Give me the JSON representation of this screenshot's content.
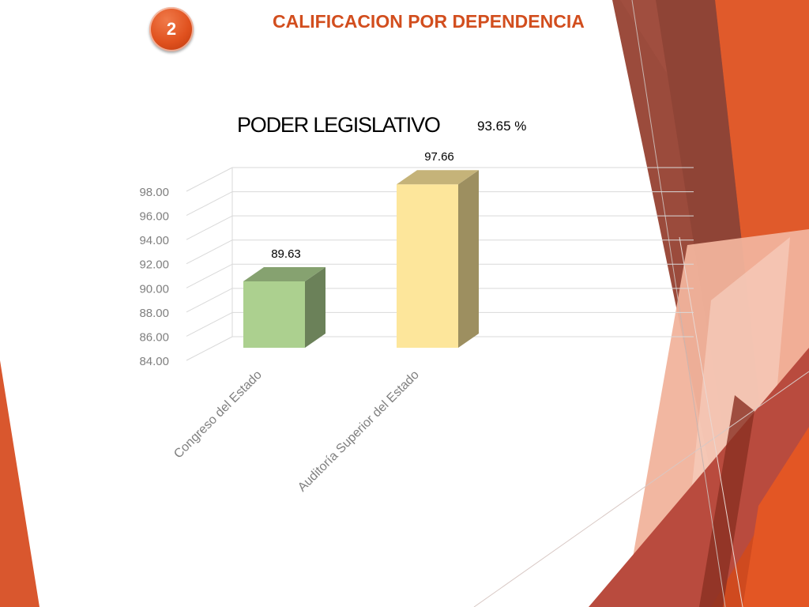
{
  "slide": {
    "badge_number": "2",
    "title": "CALIFICACION POR DEPENDENCIA",
    "accent_color": "#d24e1e"
  },
  "chart_data": {
    "type": "bar",
    "title": "PODER LEGISLATIVO",
    "subtitle": "93.65 %",
    "categories": [
      "Congreso del Estado",
      "Auditoría Superior del Estado"
    ],
    "values": [
      89.63,
      97.66
    ],
    "data_labels": [
      "89.63",
      "97.66"
    ],
    "bar_colors": [
      "#acd08f",
      "#fde69b"
    ],
    "ylim": [
      84,
      98
    ],
    "y_ticks": [
      "84.00",
      "86.00",
      "88.00",
      "90.00",
      "92.00",
      "94.00",
      "96.00",
      "98.00"
    ],
    "xlabel": "",
    "ylabel": "",
    "grid": true,
    "legend": "none",
    "style": "3d-column"
  }
}
